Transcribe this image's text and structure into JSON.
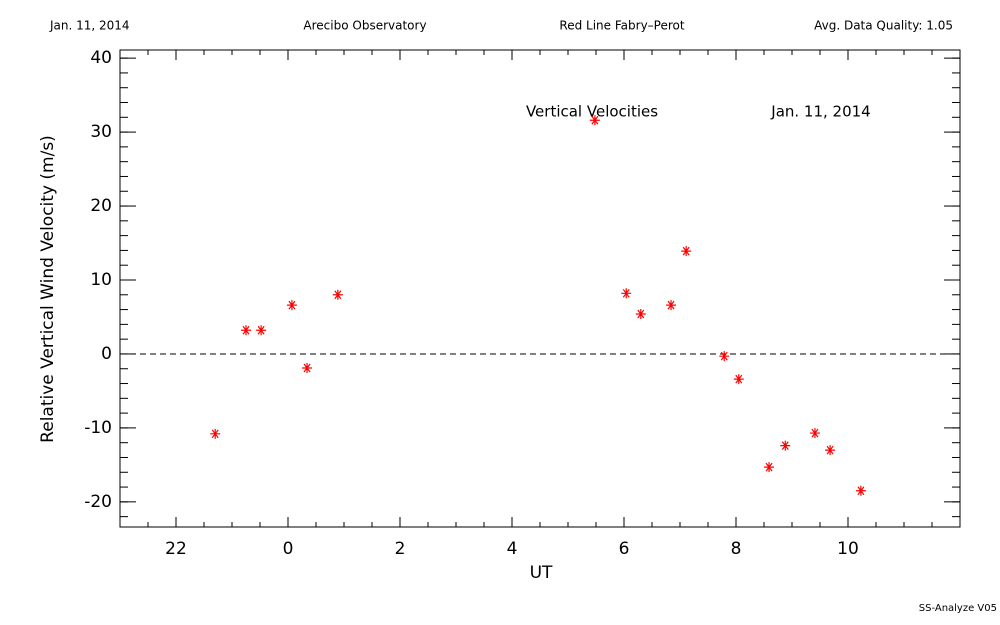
{
  "header": {
    "date": "Jan. 11, 2014",
    "site": "Arecibo Observatory",
    "instrument": "Red Line Fabry–Perot",
    "quality": "Avg. Data Quality: 1.05"
  },
  "footer": "SS-Analyze V05",
  "chart_data": {
    "type": "scatter",
    "annotations": [
      "Vertical Velocities",
      "Jan. 11, 2014"
    ],
    "xlabel": "UT",
    "ylabel": "Relative Vertical Wind Velocity (m/s)",
    "x": [
      -1.3,
      -0.75,
      -0.48,
      0.07,
      0.34,
      0.89,
      5.48,
      6.04,
      6.3,
      6.84,
      7.11,
      7.79,
      8.05,
      8.59,
      8.88,
      9.41,
      9.68,
      10.23
    ],
    "values": [
      -10.8,
      3.2,
      3.2,
      6.6,
      -1.9,
      8.0,
      31.6,
      8.2,
      5.4,
      6.6,
      13.9,
      -0.3,
      -3.4,
      -15.3,
      -12.4,
      -10.7,
      -13.0,
      -18.5
    ],
    "color": "#ff0000",
    "xlim": [
      -3,
      12
    ],
    "ylim": [
      -23.4,
      41.1
    ],
    "xticks": [
      {
        "value": -2,
        "label": "22"
      },
      0,
      2,
      4,
      6,
      8,
      10
    ],
    "yticks": [
      -20,
      -10,
      0,
      10,
      20,
      30,
      40
    ],
    "xminor": 0.5,
    "yminor": 2,
    "hline": 0
  }
}
